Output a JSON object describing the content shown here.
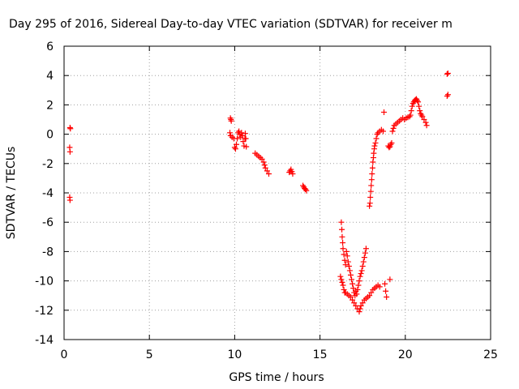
{
  "chart_data": {
    "type": "scatter",
    "title": "Day 295 of 2016, Sidereal Day-to-day VTEC variation (SDTVAR) for receiver m",
    "xlabel": "GPS time / hours",
    "ylabel": "SDTVAR / TECUs",
    "xlim": [
      0,
      25
    ],
    "ylim": [
      -14,
      6
    ],
    "xticks": [
      0,
      5,
      10,
      15,
      20,
      25
    ],
    "yticks": [
      -14,
      -12,
      -10,
      -8,
      -6,
      -4,
      -2,
      0,
      2,
      4,
      6
    ],
    "grid": true,
    "marker": "+",
    "series": [
      {
        "name": "SDTVAR",
        "color": "#ff0000",
        "points": [
          [
            0.35,
            0.45
          ],
          [
            0.37,
            0.38
          ],
          [
            0.33,
            -0.9
          ],
          [
            0.35,
            -1.2
          ],
          [
            0.33,
            -4.3
          ],
          [
            0.35,
            -4.5
          ],
          [
            9.75,
            1.1
          ],
          [
            9.78,
            1.0
          ],
          [
            9.8,
            0.9
          ],
          [
            9.72,
            0.1
          ],
          [
            9.76,
            -0.1
          ],
          [
            9.85,
            -0.2
          ],
          [
            9.95,
            -0.3
          ],
          [
            10.0,
            -0.9
          ],
          [
            10.05,
            -1.0
          ],
          [
            10.1,
            -0.7
          ],
          [
            10.15,
            -0.3
          ],
          [
            10.2,
            0.1
          ],
          [
            10.25,
            0.2
          ],
          [
            10.3,
            0.0
          ],
          [
            10.35,
            -0.2
          ],
          [
            10.4,
            0.1
          ],
          [
            10.45,
            -0.1
          ],
          [
            10.5,
            -0.5
          ],
          [
            10.55,
            -0.8
          ],
          [
            10.6,
            -0.3
          ],
          [
            10.62,
            0.05
          ],
          [
            10.65,
            -0.3
          ],
          [
            10.68,
            -0.85
          ],
          [
            11.2,
            -1.3
          ],
          [
            11.3,
            -1.4
          ],
          [
            11.4,
            -1.5
          ],
          [
            11.5,
            -1.6
          ],
          [
            11.6,
            -1.7
          ],
          [
            11.7,
            -1.9
          ],
          [
            11.75,
            -2.1
          ],
          [
            11.8,
            -2.3
          ],
          [
            11.9,
            -2.5
          ],
          [
            12.0,
            -2.7
          ],
          [
            13.2,
            -2.6
          ],
          [
            13.25,
            -2.5
          ],
          [
            13.3,
            -2.4
          ],
          [
            13.35,
            -2.55
          ],
          [
            13.4,
            -2.7
          ],
          [
            14.0,
            -3.5
          ],
          [
            14.05,
            -3.6
          ],
          [
            14.1,
            -3.7
          ],
          [
            14.15,
            -3.75
          ],
          [
            14.2,
            -3.85
          ],
          [
            16.25,
            -6.0
          ],
          [
            16.28,
            -6.5
          ],
          [
            16.3,
            -7.0
          ],
          [
            16.33,
            -7.4
          ],
          [
            16.35,
            -7.8
          ],
          [
            16.4,
            -8.2
          ],
          [
            16.45,
            -8.6
          ],
          [
            16.5,
            -8.9
          ],
          [
            16.55,
            -8.0
          ],
          [
            16.6,
            -8.3
          ],
          [
            16.65,
            -8.7
          ],
          [
            16.7,
            -9.0
          ],
          [
            16.75,
            -9.3
          ],
          [
            16.8,
            -9.6
          ],
          [
            16.85,
            -9.9
          ],
          [
            16.9,
            -10.2
          ],
          [
            16.95,
            -10.5
          ],
          [
            17.0,
            -10.8
          ],
          [
            17.05,
            -11.0
          ],
          [
            17.1,
            -10.7
          ],
          [
            17.15,
            -10.9
          ],
          [
            17.2,
            -10.6
          ],
          [
            17.25,
            -10.3
          ],
          [
            17.3,
            -10.0
          ],
          [
            17.35,
            -9.7
          ],
          [
            17.4,
            -9.5
          ],
          [
            17.45,
            -9.3
          ],
          [
            17.5,
            -9.0
          ],
          [
            17.55,
            -8.7
          ],
          [
            17.6,
            -8.4
          ],
          [
            17.65,
            -8.1
          ],
          [
            17.7,
            -7.8
          ],
          [
            16.2,
            -9.7
          ],
          [
            16.25,
            -9.9
          ],
          [
            16.3,
            -10.1
          ],
          [
            16.35,
            -10.3
          ],
          [
            16.4,
            -10.6
          ],
          [
            16.45,
            -10.8
          ],
          [
            16.5,
            -10.8
          ],
          [
            16.6,
            -10.9
          ],
          [
            16.7,
            -11.0
          ],
          [
            16.8,
            -11.1
          ],
          [
            16.9,
            -11.3
          ],
          [
            17.0,
            -11.5
          ],
          [
            17.1,
            -11.7
          ],
          [
            17.2,
            -11.9
          ],
          [
            17.3,
            -12.1
          ],
          [
            17.35,
            -11.9
          ],
          [
            17.4,
            -11.7
          ],
          [
            17.5,
            -11.5
          ],
          [
            17.6,
            -11.3
          ],
          [
            17.7,
            -11.2
          ],
          [
            17.8,
            -11.1
          ],
          [
            17.9,
            -11.0
          ],
          [
            18.0,
            -10.8
          ],
          [
            18.1,
            -10.6
          ],
          [
            18.2,
            -10.5
          ],
          [
            18.3,
            -10.4
          ],
          [
            18.4,
            -10.3
          ],
          [
            18.5,
            -10.4
          ],
          [
            18.8,
            -10.2
          ],
          [
            18.85,
            -10.7
          ],
          [
            18.9,
            -11.1
          ],
          [
            19.1,
            -9.9
          ],
          [
            17.9,
            -4.9
          ],
          [
            17.93,
            -4.7
          ],
          [
            17.95,
            -4.3
          ],
          [
            17.98,
            -3.9
          ],
          [
            18.0,
            -3.5
          ],
          [
            18.03,
            -3.1
          ],
          [
            18.05,
            -2.7
          ],
          [
            18.08,
            -2.3
          ],
          [
            18.1,
            -1.9
          ],
          [
            18.13,
            -1.6
          ],
          [
            18.15,
            -1.3
          ],
          [
            18.18,
            -1.0
          ],
          [
            18.2,
            -0.8
          ],
          [
            18.25,
            -0.6
          ],
          [
            18.3,
            -0.3
          ],
          [
            18.35,
            0.0
          ],
          [
            18.4,
            0.1
          ],
          [
            18.5,
            0.2
          ],
          [
            18.6,
            0.3
          ],
          [
            18.7,
            0.2
          ],
          [
            18.75,
            1.5
          ],
          [
            19.0,
            -0.8
          ],
          [
            19.05,
            -0.9
          ],
          [
            19.1,
            -0.85
          ],
          [
            19.15,
            -0.7
          ],
          [
            19.2,
            -0.6
          ],
          [
            19.25,
            0.2
          ],
          [
            19.3,
            0.4
          ],
          [
            19.35,
            0.6
          ],
          [
            19.45,
            0.7
          ],
          [
            19.55,
            0.8
          ],
          [
            19.65,
            0.9
          ],
          [
            19.75,
            1.0
          ],
          [
            19.85,
            1.1
          ],
          [
            19.95,
            1.0
          ],
          [
            20.05,
            1.1
          ],
          [
            20.15,
            1.15
          ],
          [
            20.25,
            1.2
          ],
          [
            20.3,
            1.3
          ],
          [
            20.35,
            1.6
          ],
          [
            20.4,
            1.9
          ],
          [
            20.45,
            2.1
          ],
          [
            20.5,
            2.2
          ],
          [
            20.55,
            2.3
          ],
          [
            20.6,
            2.35
          ],
          [
            20.65,
            2.4
          ],
          [
            20.7,
            2.3
          ],
          [
            20.75,
            2.2
          ],
          [
            20.8,
            1.9
          ],
          [
            20.85,
            1.6
          ],
          [
            20.9,
            1.4
          ],
          [
            20.95,
            1.3
          ],
          [
            21.0,
            1.2
          ],
          [
            21.1,
            1.0
          ],
          [
            21.2,
            0.8
          ],
          [
            21.25,
            0.6
          ],
          [
            22.45,
            4.1
          ],
          [
            22.5,
            4.15
          ],
          [
            22.45,
            2.6
          ],
          [
            22.5,
            2.7
          ]
        ]
      }
    ]
  }
}
